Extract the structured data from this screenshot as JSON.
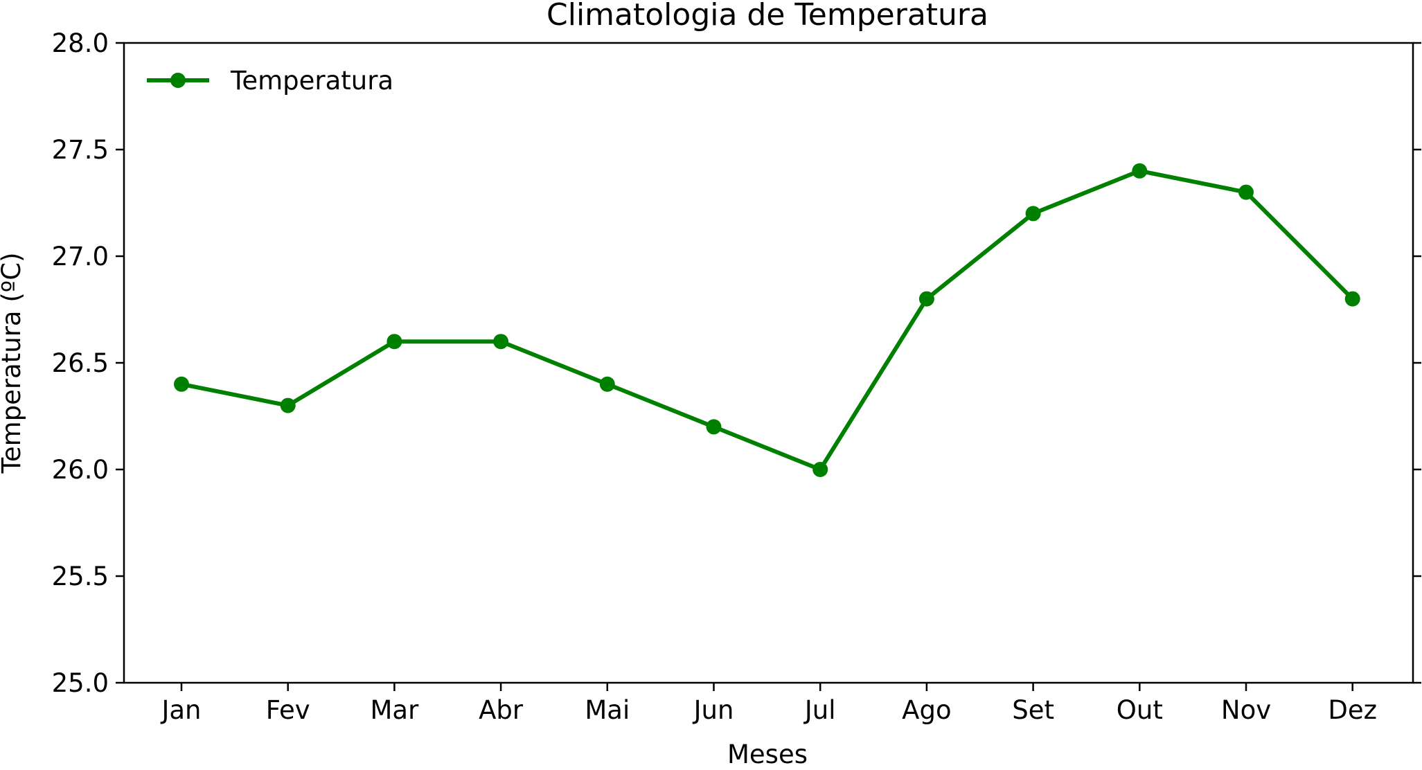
{
  "chart_data": {
    "type": "line",
    "title": "Climatologia de Temperatura",
    "xlabel": "Meses",
    "ylabel": "Temperatura (ºC)",
    "categories": [
      "Jan",
      "Fev",
      "Mar",
      "Abr",
      "Mai",
      "Jun",
      "Jul",
      "Ago",
      "Set",
      "Out",
      "Nov",
      "Dez"
    ],
    "series": [
      {
        "name": "Temperatura",
        "color": "#008000",
        "marker": "circle",
        "values": [
          26.4,
          26.3,
          26.6,
          26.6,
          26.4,
          26.2,
          26.0,
          26.8,
          27.2,
          27.4,
          27.3,
          26.8
        ]
      }
    ],
    "ylim": [
      25.0,
      28.0
    ],
    "yticks": [
      "25.0",
      "25.5",
      "26.0",
      "26.5",
      "27.0",
      "27.5",
      "28.0"
    ],
    "grid": false,
    "legend_position": "upper-left"
  }
}
